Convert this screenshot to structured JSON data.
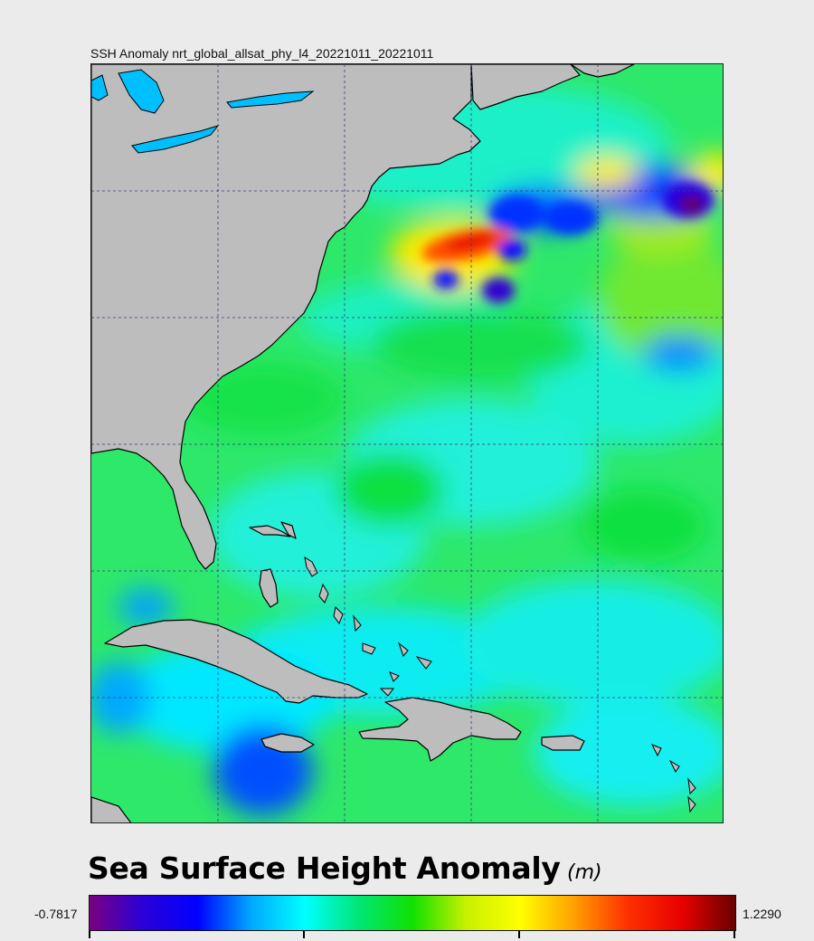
{
  "map": {
    "title": "SSH Anomaly nrt_global_allsat_phy_l4_20221011_20221011",
    "field": "Sea Surface Height Anomaly",
    "region": "Western North Atlantic, US East Coast, Bahamas and Caribbean",
    "grid": true
  },
  "legend": {
    "title": "Sea Surface Height Anomaly",
    "units": "(m)",
    "min_label": "-0.7817",
    "max_label": "1.2290",
    "min_value": -0.7817,
    "max_value": 1.229,
    "colormap": [
      "#7a0080",
      "#2a00d8",
      "#0000ff",
      "#00a8ff",
      "#00ffff",
      "#00e676",
      "#10e000",
      "#c8f000",
      "#ffff00",
      "#ffa000",
      "#ff3000",
      "#e80000",
      "#6a0000"
    ]
  },
  "colors": {
    "land": "#bdbdbd",
    "lakes": "#00bfff",
    "background": "#ebebeb"
  }
}
